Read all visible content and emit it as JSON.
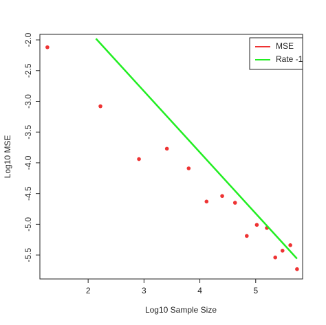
{
  "chart_data": {
    "type": "scatter",
    "xlabel": "Log10 Sample Size",
    "ylabel": "Log10 MSE",
    "xlim": [
      1.136,
      5.84
    ],
    "ylim": [
      -5.89,
      -1.91
    ],
    "xticks": [
      2,
      3,
      4,
      5
    ],
    "yticks": [
      {
        "value": -2,
        "label": "-2.0"
      },
      -2.5,
      {
        "value": -3,
        "label": "-3.0"
      },
      -3.5,
      {
        "value": -4,
        "label": "-4.0"
      },
      -4.5,
      {
        "value": -5,
        "label": "-5.0"
      },
      -5.5
    ],
    "legend": "top-right",
    "series": [
      {
        "name": "MSE",
        "color": "#ee3333",
        "type": "scatter",
        "x": [
          1.27,
          2.22,
          2.91,
          3.41,
          3.8,
          4.12,
          4.4,
          4.63,
          4.84,
          5.02,
          5.2,
          5.35,
          5.48,
          5.62,
          5.74
        ],
        "values": [
          -2.12,
          -3.08,
          -3.94,
          -3.77,
          -4.09,
          -4.63,
          -4.54,
          -4.65,
          -5.19,
          -5.01,
          -5.06,
          -5.54,
          -5.43,
          -5.34,
          -5.73
        ]
      },
      {
        "name": "Rate -1",
        "color": "#22ee22",
        "type": "line",
        "x": [
          2.14,
          5.74
        ],
        "values": [
          -1.98,
          -5.56
        ]
      }
    ]
  }
}
